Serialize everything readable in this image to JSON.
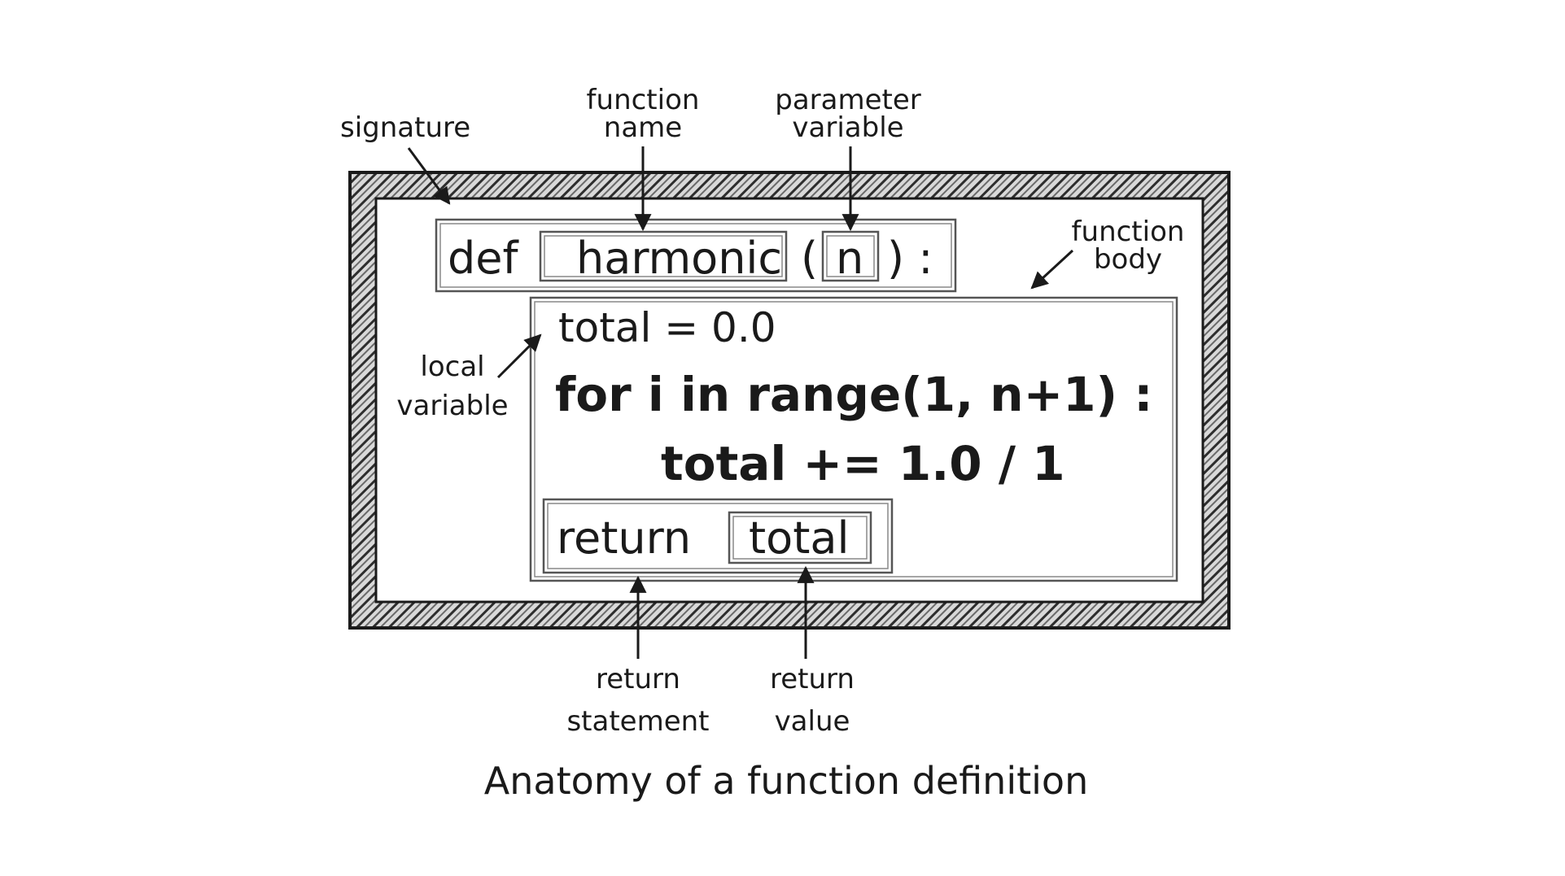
{
  "code": {
    "def_kw": "def",
    "func_name": "harmonic",
    "open_paren": "(",
    "param": "n",
    "close_paren_colon": ") :",
    "line1": "total = 0.0",
    "line2": "for i in range(1, n+1) :",
    "line3": "total += 1.0 / 1",
    "return_kw": "return",
    "return_value": "total"
  },
  "labels": {
    "signature": "signature",
    "function_name": [
      "function",
      "name"
    ],
    "parameter_variable": [
      "parameter",
      "variable"
    ],
    "function_body": [
      "function",
      "body"
    ],
    "local_variable": [
      "local",
      "variable"
    ],
    "return_statement": [
      "return",
      "statement"
    ],
    "return_value": [
      "return",
      "value"
    ]
  },
  "caption": "Anatomy of a function definition",
  "colors": {
    "ink": "#1a1a1a",
    "frame": "#3a3a3a",
    "box": "#555555"
  }
}
